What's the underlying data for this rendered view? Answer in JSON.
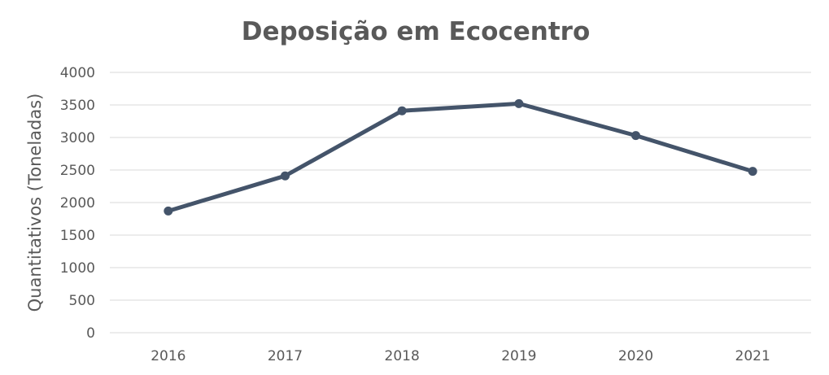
{
  "chart_data": {
    "type": "line",
    "title": "Deposição em Ecocentro",
    "xlabel": "",
    "ylabel": "Quantitativos (Toneladas)",
    "categories": [
      "2016",
      "2017",
      "2018",
      "2019",
      "2020",
      "2021"
    ],
    "series": [
      {
        "values": [
          1870,
          2410,
          3410,
          3520,
          3030,
          2480
        ],
        "color": "#44546a"
      }
    ],
    "ylim": [
      0,
      4000
    ],
    "yticks": [
      "0",
      "500",
      "1000",
      "1500",
      "2000",
      "2500",
      "3000",
      "3500",
      "4000"
    ],
    "grid": true,
    "legend": "none",
    "colors": {
      "text": "#595959",
      "grid": "#d9d9d9",
      "line": "#44546a"
    }
  }
}
